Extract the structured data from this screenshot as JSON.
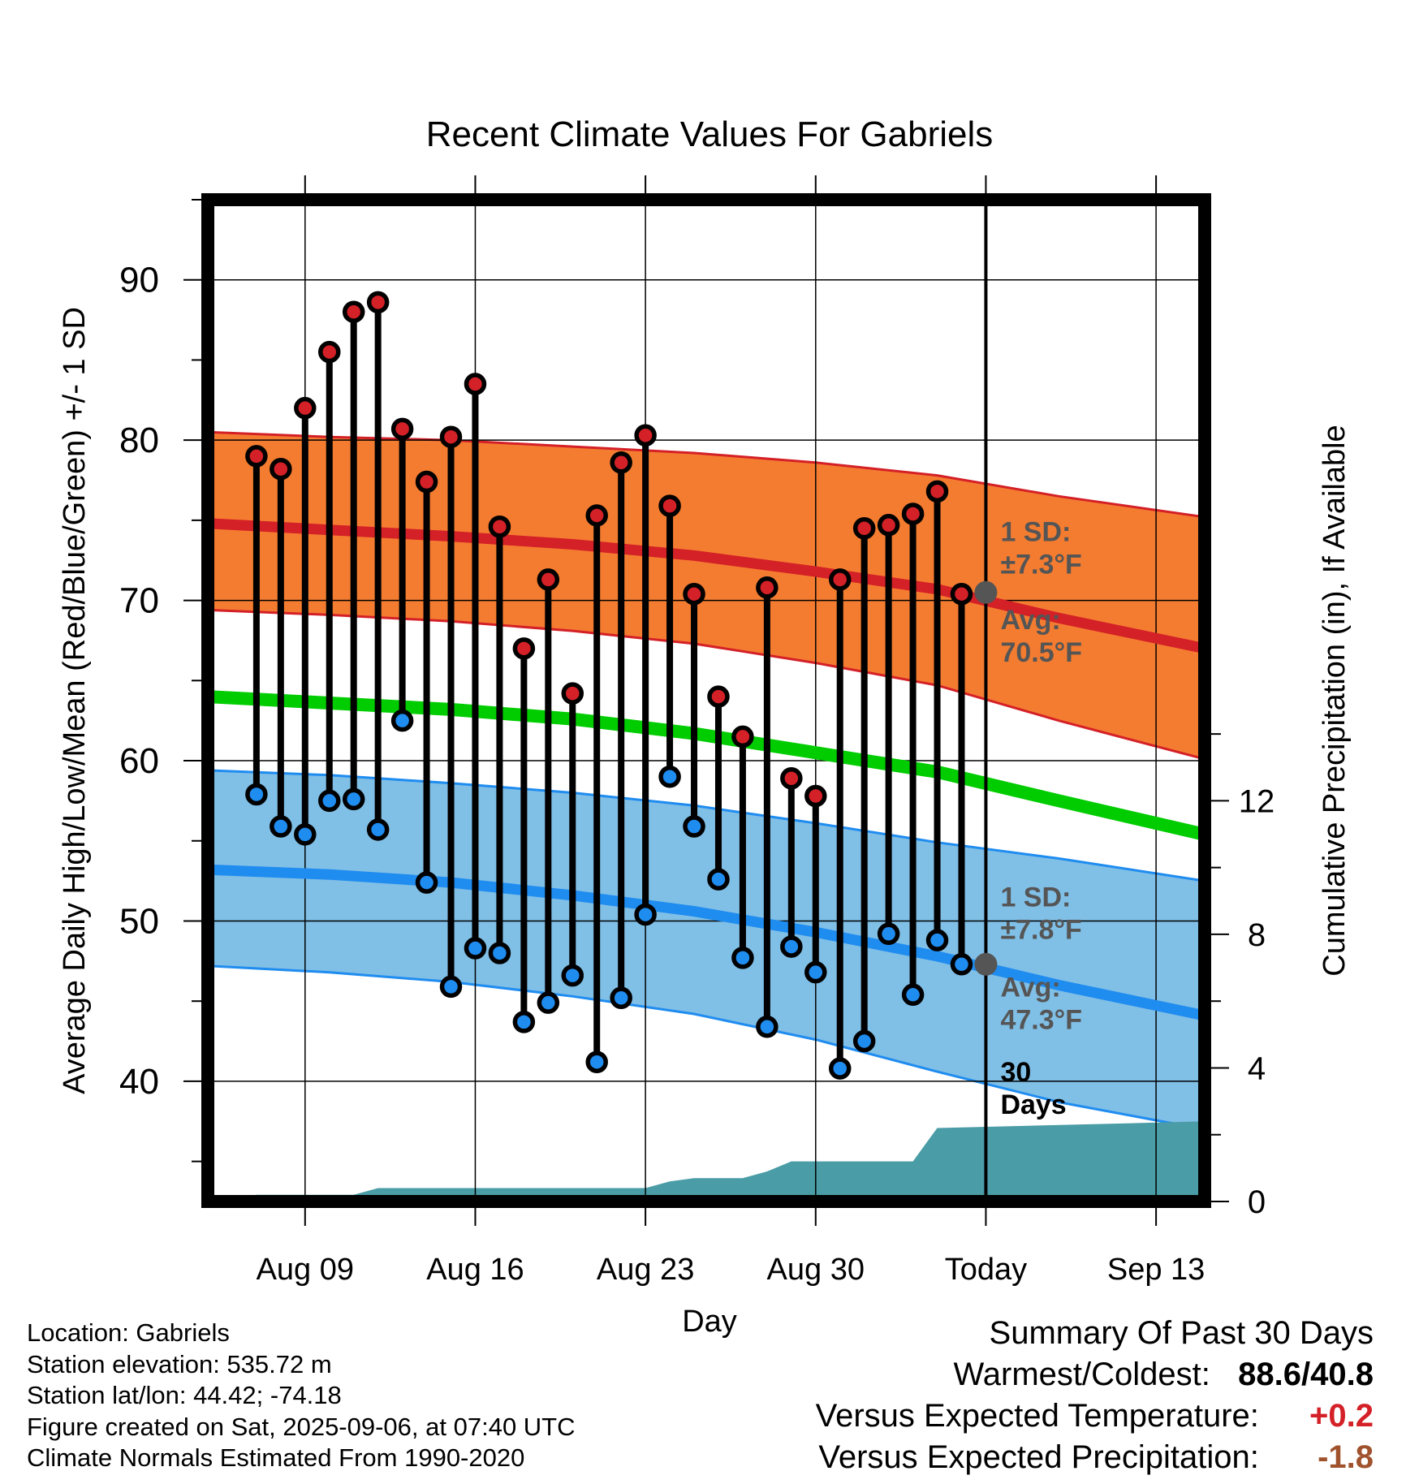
{
  "chart_data": {
    "type": "line",
    "title": "Recent Climate Values For Gabriels",
    "xlabel": "Day",
    "ylabel": "Average Daily High/Low/Mean (Red/Blue/Green) +/- 1 SD",
    "y2label": "Cumulative Precipitation (in), If Available",
    "ylim": [
      32.5,
      95
    ],
    "y2lim": [
      0,
      30
    ],
    "yticks": [
      40,
      50,
      60,
      70,
      80,
      90
    ],
    "y2ticks": [
      0,
      4,
      8,
      12
    ],
    "xlim": [
      "2025-08-05",
      "2025-09-15"
    ],
    "xticks": [
      {
        "date": "2025-08-09",
        "label": "Aug 09"
      },
      {
        "date": "2025-08-16",
        "label": "Aug 16"
      },
      {
        "date": "2025-08-23",
        "label": "Aug 23"
      },
      {
        "date": "2025-08-30",
        "label": "Aug 30"
      },
      {
        "date": "2025-09-06",
        "label": "Today"
      },
      {
        "date": "2025-09-13",
        "label": "Sep 13"
      }
    ],
    "grid": true,
    "today": "2025-09-06",
    "daily": {
      "dates": [
        "2025-08-07",
        "2025-08-08",
        "2025-08-09",
        "2025-08-10",
        "2025-08-11",
        "2025-08-12",
        "2025-08-13",
        "2025-08-14",
        "2025-08-15",
        "2025-08-16",
        "2025-08-17",
        "2025-08-18",
        "2025-08-19",
        "2025-08-20",
        "2025-08-21",
        "2025-08-22",
        "2025-08-23",
        "2025-08-24",
        "2025-08-25",
        "2025-08-26",
        "2025-08-27",
        "2025-08-28",
        "2025-08-29",
        "2025-08-30",
        "2025-08-31",
        "2025-09-01",
        "2025-09-02",
        "2025-09-03",
        "2025-09-04",
        "2025-09-05"
      ],
      "high": [
        79.0,
        78.2,
        82.0,
        85.5,
        88.0,
        88.6,
        80.7,
        77.4,
        80.2,
        83.5,
        74.6,
        67.0,
        71.3,
        64.2,
        75.3,
        78.6,
        80.3,
        75.9,
        70.4,
        64.0,
        61.5,
        70.8,
        58.9,
        57.8,
        71.3,
        74.5,
        74.7,
        75.4,
        76.8,
        70.4
      ],
      "low": [
        57.9,
        55.9,
        55.4,
        57.5,
        57.6,
        55.7,
        62.5,
        52.4,
        45.9,
        48.3,
        48.0,
        43.7,
        44.9,
        46.6,
        41.2,
        45.2,
        50.4,
        59.0,
        55.9,
        52.6,
        47.7,
        43.4,
        48.4,
        46.8,
        40.8,
        42.5,
        49.2,
        45.4,
        48.8,
        47.3
      ]
    },
    "normals": {
      "dates": [
        "2025-08-05",
        "2025-08-10",
        "2025-08-15",
        "2025-08-20",
        "2025-08-25",
        "2025-08-30",
        "2025-09-04",
        "2025-09-09",
        "2025-09-15"
      ],
      "high_avg": [
        74.8,
        74.4,
        74.0,
        73.5,
        72.8,
        71.8,
        70.7,
        68.9,
        67.0
      ],
      "high_upper": [
        80.5,
        80.2,
        80.0,
        79.6,
        79.2,
        78.6,
        77.8,
        76.5,
        75.2
      ],
      "high_lower": [
        69.4,
        69.1,
        68.7,
        68.1,
        67.3,
        66.1,
        64.7,
        62.5,
        60.1
      ],
      "mean": [
        64.0,
        63.6,
        63.2,
        62.6,
        61.7,
        60.5,
        59.3,
        57.5,
        55.4
      ],
      "low_avg": [
        53.2,
        52.9,
        52.4,
        51.6,
        50.6,
        49.3,
        47.8,
        46.0,
        44.1
      ],
      "low_upper": [
        59.4,
        59.1,
        58.6,
        58.0,
        57.2,
        56.1,
        54.9,
        53.9,
        52.5
      ],
      "low_lower": [
        47.2,
        46.8,
        46.2,
        45.3,
        44.2,
        42.6,
        40.6,
        38.7,
        37.0
      ]
    },
    "precip": {
      "dates": [
        "2025-08-05",
        "2025-08-06",
        "2025-08-07",
        "2025-08-11",
        "2025-08-12",
        "2025-08-18",
        "2025-08-23",
        "2025-08-24",
        "2025-08-25",
        "2025-08-27",
        "2025-08-28",
        "2025-08-29",
        "2025-09-01",
        "2025-09-02",
        "2025-09-03",
        "2025-09-04",
        "2025-09-15"
      ],
      "values": [
        0.0,
        0.1,
        0.2,
        0.2,
        0.4,
        0.4,
        0.4,
        0.6,
        0.7,
        0.7,
        0.9,
        1.2,
        1.2,
        1.2,
        1.2,
        2.2,
        2.4
      ]
    },
    "annotations": {
      "high_sd": [
        "1 SD:",
        "±7.3°F"
      ],
      "high_avg": [
        "Avg:",
        "70.5°F"
      ],
      "low_sd": [
        "1 SD:",
        "±7.8°F"
      ],
      "low_avg": [
        "Avg:",
        "47.3°F"
      ],
      "precip": [
        "30",
        "Days"
      ]
    },
    "colors": {
      "high_band": "#f47c30",
      "high_line": "#d42027",
      "mean_line": "#00cc00",
      "low_band": "#80bfe6",
      "low_line": "#1f8cf0",
      "precip": "#4a9ca6",
      "annotation": "#555555"
    }
  },
  "info": {
    "location": "Location: Gabriels",
    "elevation": "Station elevation: 535.72 m",
    "latlon": "Station lat/lon: 44.42; -74.18",
    "created": "Figure created on Sat, 2025-09-06, at 07:40 UTC",
    "normals": "Climate Normals Estimated From 1990-2020"
  },
  "summary": {
    "title": "Summary Of Past 30 Days",
    "warm_cold_label": "Warmest/Coldest:",
    "warm_cold_value": "88.6/40.8",
    "temp_label": "Versus Expected Temperature:",
    "temp_value": "+0.2",
    "temp_color": "#d42027",
    "precip_label": "Versus Expected Precipitation:",
    "precip_value": "-1.8",
    "precip_color": "#a0522d"
  }
}
